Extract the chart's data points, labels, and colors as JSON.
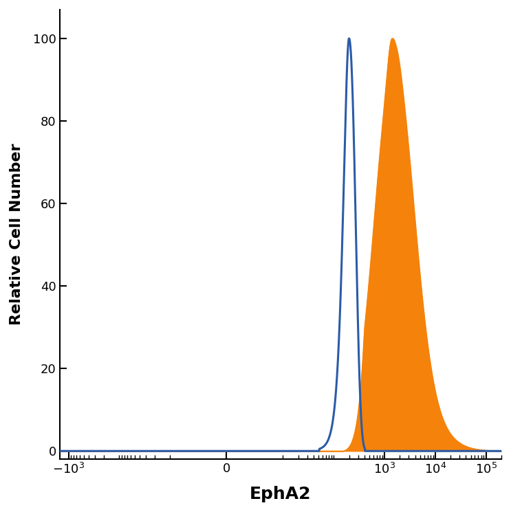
{
  "title": "",
  "xlabel": "EphA2",
  "ylabel": "Relative Cell Number",
  "xlabel_fontsize": 18,
  "ylabel_fontsize": 16,
  "xlabel_fontweight": "bold",
  "ylabel_fontweight": "bold",
  "ylim": [
    -2,
    107
  ],
  "yticks": [
    0,
    20,
    40,
    60,
    80,
    100
  ],
  "background_color": "#ffffff",
  "blue_color": "#2B5BA8",
  "orange_color": "#F5820A",
  "blue_linewidth": 2.2,
  "orange_linewidth": 0.8,
  "linthresh": 10,
  "xmin": -1500,
  "xmax": 200000,
  "xtick_positions": [
    -1000,
    0,
    1000,
    10000,
    100000
  ],
  "xtick_labels": [
    "$-10^3$",
    "$0$",
    "$10^3$",
    "$10^4$",
    "$10^5$"
  ]
}
